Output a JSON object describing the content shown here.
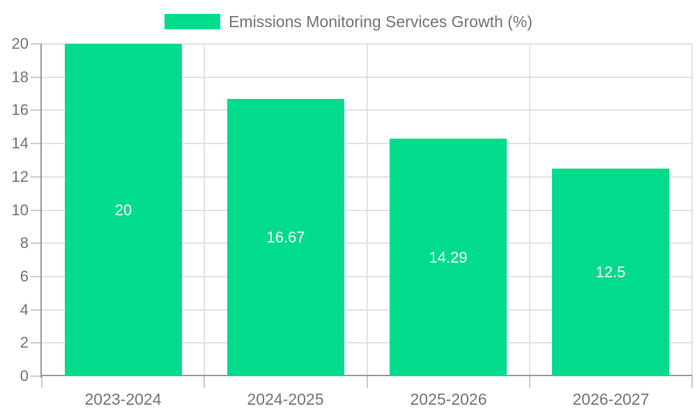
{
  "chart_data": {
    "type": "bar",
    "title": "Emissions Monitoring Services Growth (%)",
    "legend": {
      "label": "Emissions Monitoring Services Growth (%)",
      "position": "top-center"
    },
    "categories": [
      "2023-2024",
      "2024-2025",
      "2025-2026",
      "2026-2027"
    ],
    "values": [
      20,
      16.67,
      14.29,
      12.5
    ],
    "value_labels": [
      "20",
      "16.67",
      "14.29",
      "12.5"
    ],
    "xlabel": "",
    "ylabel": "",
    "ylim": [
      0,
      20
    ],
    "ytick_step": 2,
    "yticks": [
      0,
      2,
      4,
      6,
      8,
      10,
      12,
      14,
      16,
      18,
      20
    ],
    "grid": true,
    "legend_on": true,
    "colors": {
      "bar": "#00DC8C",
      "grid": "#e2e2e2",
      "tick": "#cccccc",
      "axis": "#999999",
      "label": "#757575",
      "bar_label": "#ffffff",
      "background": "#ffffff"
    }
  }
}
